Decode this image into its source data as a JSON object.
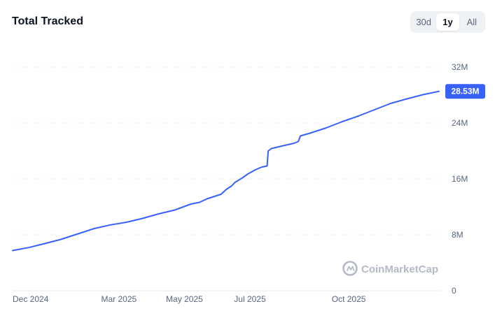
{
  "header": {
    "title": "Total Tracked",
    "ranges": [
      "30d",
      "1y",
      "All"
    ],
    "active_range": "1y"
  },
  "watermark": "CoinMarketCap",
  "colors": {
    "line": "#3861fb",
    "badge": "#3861fb",
    "grid": "#e6e9ee",
    "text": "#58667e"
  },
  "chart_data": {
    "type": "line",
    "title": "Total Tracked",
    "xlabel": "",
    "ylabel": "",
    "x_ticks": [
      "Dec 2024",
      "Mar 2025",
      "May 2025",
      "Jul 2025",
      "Oct 2025"
    ],
    "y_ticks": [
      "0",
      "8M",
      "16M",
      "24M",
      "32M"
    ],
    "ylim": [
      0,
      32000000
    ],
    "xlim": [
      "2024-11-22",
      "2025-12-26"
    ],
    "grid": true,
    "current_value_label": "28.53M",
    "series": [
      {
        "values": [
          [
            "2024-11-22",
            5750000
          ],
          [
            "2024-12-07",
            6180000
          ],
          [
            "2024-12-22",
            6750000
          ],
          [
            "2025-01-06",
            7350000
          ],
          [
            "2025-01-22",
            8150000
          ],
          [
            "2025-02-06",
            8900000
          ],
          [
            "2025-02-21",
            9420000
          ],
          [
            "2025-03-08",
            9800000
          ],
          [
            "2025-03-23",
            10350000
          ],
          [
            "2025-04-07",
            11000000
          ],
          [
            "2025-04-22",
            11550000
          ],
          [
            "2025-05-07",
            12400000
          ],
          [
            "2025-05-15",
            12650000
          ],
          [
            "2025-05-22",
            13150000
          ],
          [
            "2025-05-30",
            13550000
          ],
          [
            "2025-06-04",
            13800000
          ],
          [
            "2025-06-09",
            14500000
          ],
          [
            "2025-06-14",
            15000000
          ],
          [
            "2025-06-17",
            15500000
          ],
          [
            "2025-06-24",
            16150000
          ],
          [
            "2025-06-29",
            16700000
          ],
          [
            "2025-07-06",
            17300000
          ],
          [
            "2025-07-12",
            17700000
          ],
          [
            "2025-07-17",
            17850000
          ],
          [
            "2025-07-18",
            20000000
          ],
          [
            "2025-07-21",
            20350000
          ],
          [
            "2025-08-01",
            20750000
          ],
          [
            "2025-08-11",
            21100000
          ],
          [
            "2025-08-15",
            21350000
          ],
          [
            "2025-08-17",
            22150000
          ],
          [
            "2025-08-26",
            22550000
          ],
          [
            "2025-09-10",
            23300000
          ],
          [
            "2025-09-25",
            24200000
          ],
          [
            "2025-10-10",
            25000000
          ],
          [
            "2025-10-25",
            25900000
          ],
          [
            "2025-11-09",
            26800000
          ],
          [
            "2025-11-24",
            27450000
          ],
          [
            "2025-12-09",
            28050000
          ],
          [
            "2025-12-24",
            28530000
          ]
        ]
      }
    ]
  }
}
